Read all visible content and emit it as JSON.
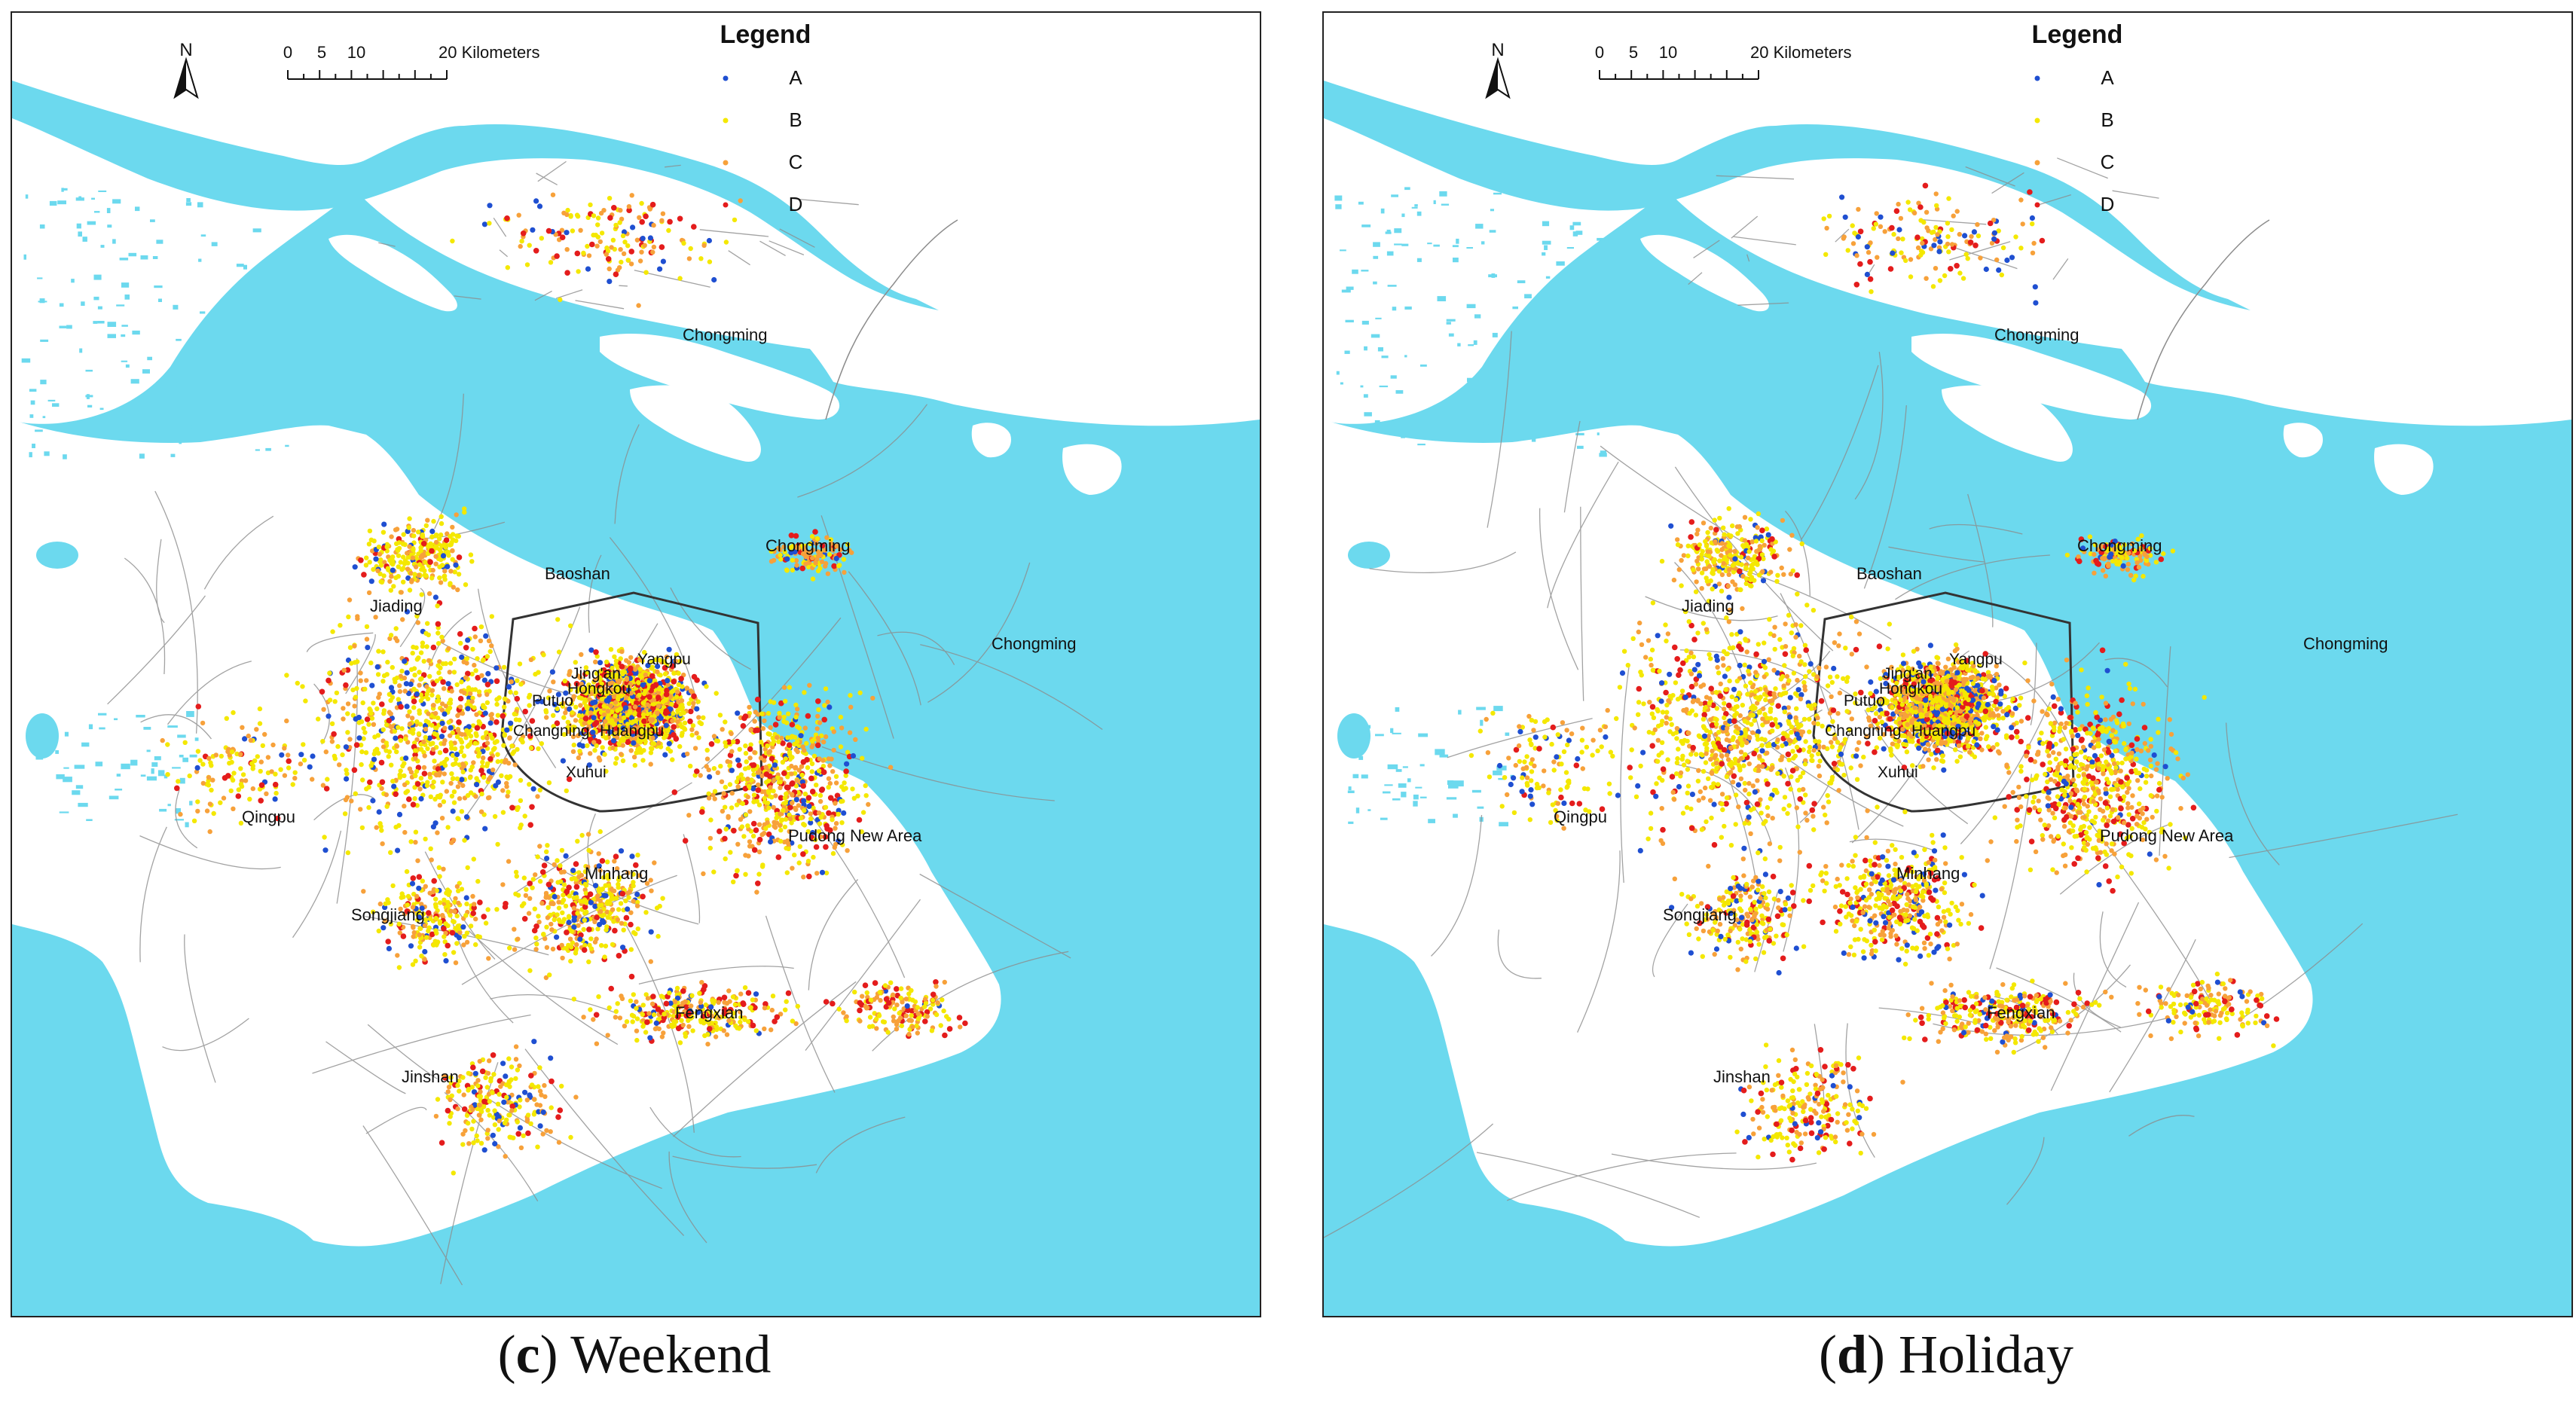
{
  "panels": [
    {
      "caption_letter": "c",
      "caption_text": "Weekend",
      "legend_title": "Legend",
      "north_label": "N",
      "scale": {
        "ticks": [
          "0",
          "5",
          "10",
          "20 Kilometers"
        ]
      },
      "legend": [
        {
          "label": "A",
          "color": "#1f4fd1"
        },
        {
          "label": "B",
          "color": "#f4e800"
        },
        {
          "label": "C",
          "color": "#f7a13a"
        },
        {
          "label": "D",
          "color": "#e41c1c"
        }
      ],
      "place_labels": [
        "Chongming",
        "Chongming",
        "Chongming",
        "Baoshan",
        "Jiading",
        "Yangpu",
        "Jing'an",
        "Hongkou",
        "Putuo",
        "Changning",
        "Huangpu",
        "Xuhui",
        "Qingpu",
        "Pudong New Area",
        "Minhang",
        "Songjiang",
        "Fengxian",
        "Jinshan"
      ]
    },
    {
      "caption_letter": "d",
      "caption_text": "Holiday",
      "legend_title": "Legend",
      "north_label": "N",
      "scale": {
        "ticks": [
          "0",
          "5",
          "10",
          "20 Kilometers"
        ]
      },
      "legend": [
        {
          "label": "A",
          "color": "#1f4fd1"
        },
        {
          "label": "B",
          "color": "#f4e800"
        },
        {
          "label": "C",
          "color": "#f7a13a"
        },
        {
          "label": "D",
          "color": "#e41c1c"
        }
      ],
      "place_labels": [
        "Chongming",
        "Chongming",
        "Chongming",
        "Baoshan",
        "Jiading",
        "Yangpu",
        "Jing'an",
        "Hongkou",
        "Putuo",
        "Changning",
        "Huangpu",
        "Xuhui",
        "Qingpu",
        "Pudong New Area",
        "Minhang",
        "Songjiang",
        "Fengxian",
        "Jinshan"
      ]
    }
  ],
  "colors": {
    "water": "#6cd9ee",
    "land": "#ffffff",
    "road": "#8c8c8c",
    "ring": "#333333"
  }
}
